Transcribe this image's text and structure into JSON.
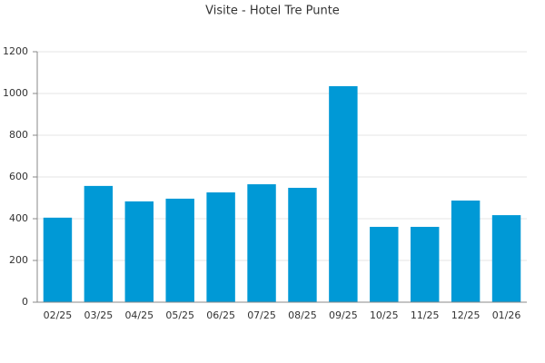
{
  "chart_data": {
    "type": "bar",
    "title": "Visite - Hotel Tre Punte",
    "categories": [
      "02/25",
      "03/25",
      "04/25",
      "05/25",
      "06/25",
      "07/25",
      "08/25",
      "09/25",
      "10/25",
      "11/25",
      "12/25",
      "01/26"
    ],
    "values": [
      405,
      557,
      483,
      496,
      526,
      565,
      548,
      1035,
      361,
      361,
      487,
      417
    ],
    "color": "#0099d6",
    "ylim": [
      0,
      1200
    ],
    "yticks": [
      0,
      200,
      400,
      600,
      800,
      1000,
      1200
    ],
    "grid": true
  }
}
